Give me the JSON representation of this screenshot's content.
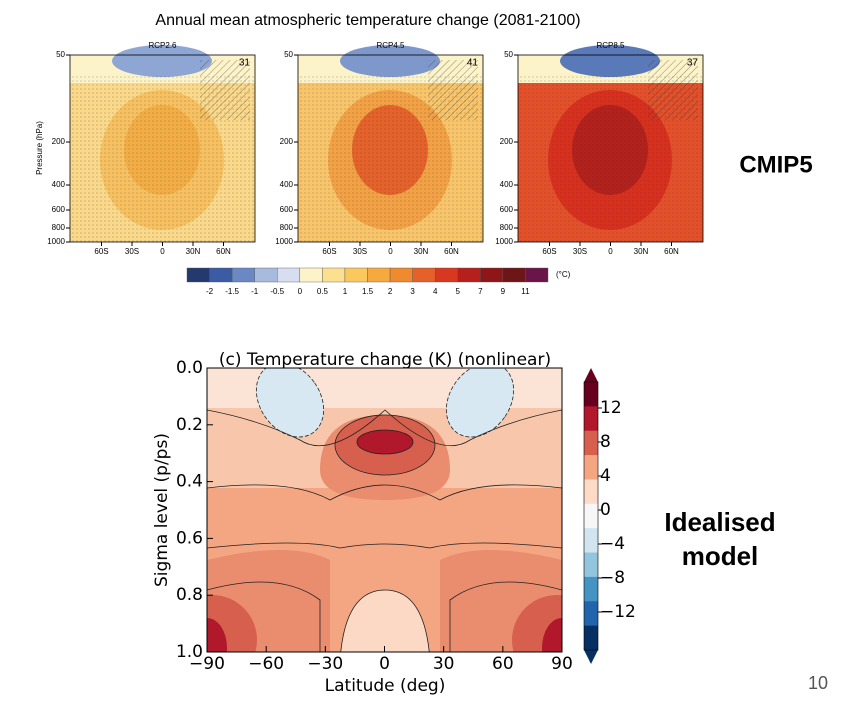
{
  "slide": {
    "page_number": "10"
  },
  "top_figure": {
    "title": "Annual mean atmospheric temperature change (2081-2100)",
    "panels": [
      {
        "title": "RCP2.6",
        "count": "31"
      },
      {
        "title": "RCP4.5",
        "count": "41"
      },
      {
        "title": "RCP8.5",
        "count": "37"
      }
    ],
    "y_axis_label": "Pressure (hPa)",
    "y_ticks": [
      "50",
      "200",
      "400",
      "600",
      "800",
      "1000"
    ],
    "x_ticks": [
      "60S",
      "30S",
      "0",
      "30N",
      "60N"
    ],
    "colorbar_ticks": [
      "-2",
      "-1.5",
      "-1",
      "-0.5",
      "0",
      "0.5",
      "1",
      "1.5",
      "2",
      "3",
      "4",
      "5",
      "7",
      "9",
      "11"
    ],
    "colorbar_unit": "(°C)",
    "side_label": "CMIP5"
  },
  "bottom_figure": {
    "title": "(c) Temperature change (K) (nonlinear)",
    "y_axis_label": "Sigma level (p/ps)",
    "x_axis_label": "Latitude (deg)",
    "y_ticks": [
      "0.0",
      "0.2",
      "0.4",
      "0.6",
      "0.8",
      "1.0"
    ],
    "x_ticks": [
      "−90",
      "−60",
      "−30",
      "0",
      "30",
      "60",
      "90"
    ],
    "colorbar_ticks": [
      "12",
      "8",
      "4",
      "0",
      "−4",
      "−8",
      "−12"
    ],
    "side_label": [
      "Idealised",
      "model"
    ]
  }
}
